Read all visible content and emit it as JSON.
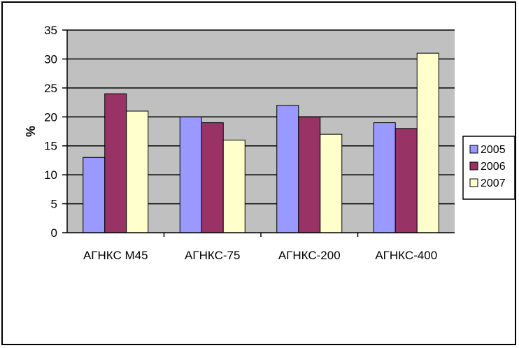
{
  "chart_data": {
    "type": "bar",
    "categories": [
      "АГНКС М45",
      "АГНКС-75",
      "АГНКС-200",
      "АГНКС-400"
    ],
    "series": [
      {
        "name": "2005",
        "values": [
          13,
          20,
          22,
          19
        ]
      },
      {
        "name": "2006",
        "values": [
          24,
          19,
          20,
          18
        ]
      },
      {
        "name": "2007",
        "values": [
          21,
          16,
          17,
          31
        ]
      }
    ],
    "title": "",
    "xlabel": "",
    "ylabel": "%",
    "ylim": [
      0,
      35
    ],
    "yticks": [
      0,
      5,
      10,
      15,
      20,
      25,
      30,
      35
    ],
    "grid": true,
    "legend": "right",
    "colors": {
      "series": [
        "#9999ff",
        "#993366",
        "#ffffcc"
      ],
      "plot_background": "#c0c0c0",
      "gridline": "#000000",
      "bar_edge": "#000000"
    }
  }
}
